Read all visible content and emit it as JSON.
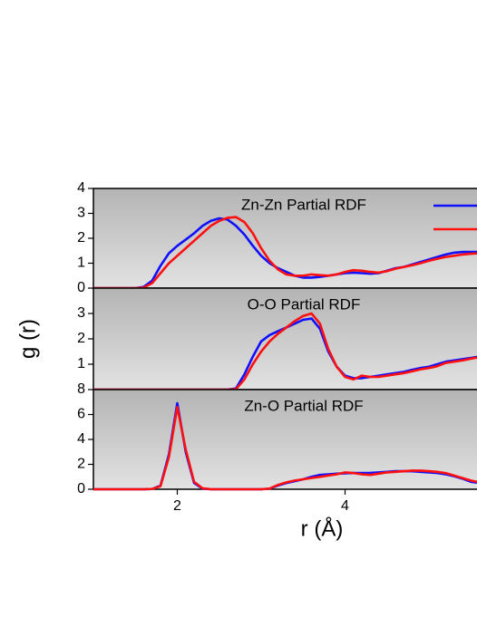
{
  "chart_data": [
    {
      "type": "line",
      "title": "Zn-Zn Partial RDF",
      "x": [
        1.0,
        1.5,
        1.6,
        1.7,
        1.8,
        1.9,
        2.0,
        2.1,
        2.2,
        2.3,
        2.4,
        2.5,
        2.6,
        2.7,
        2.8,
        2.9,
        3.0,
        3.1,
        3.2,
        3.3,
        3.4,
        3.5,
        3.6,
        3.7,
        3.8,
        3.9,
        4.0,
        4.1,
        4.2,
        4.3,
        4.4,
        4.5,
        4.6,
        4.7,
        4.8,
        4.9,
        5.0,
        5.1,
        5.2,
        5.3,
        5.4,
        5.5,
        5.6
      ],
      "series": [
        {
          "color": "#1010ff",
          "values": [
            0,
            0,
            0.05,
            0.3,
            0.9,
            1.4,
            1.7,
            1.95,
            2.2,
            2.5,
            2.7,
            2.8,
            2.75,
            2.5,
            2.15,
            1.7,
            1.3,
            1.0,
            0.8,
            0.65,
            0.5,
            0.42,
            0.42,
            0.45,
            0.5,
            0.55,
            0.6,
            0.62,
            0.6,
            0.58,
            0.6,
            0.7,
            0.8,
            0.85,
            0.95,
            1.05,
            1.15,
            1.25,
            1.35,
            1.42,
            1.45,
            1.45,
            1.45
          ]
        },
        {
          "color": "#ff1010",
          "values": [
            0,
            0,
            0.02,
            0.2,
            0.6,
            1.0,
            1.3,
            1.6,
            1.9,
            2.2,
            2.5,
            2.7,
            2.82,
            2.85,
            2.65,
            2.2,
            1.6,
            1.1,
            0.75,
            0.55,
            0.5,
            0.5,
            0.55,
            0.52,
            0.5,
            0.55,
            0.65,
            0.72,
            0.7,
            0.65,
            0.62,
            0.68,
            0.78,
            0.85,
            0.92,
            1.0,
            1.1,
            1.18,
            1.25,
            1.3,
            1.35,
            1.38,
            1.4
          ]
        }
      ],
      "xlim": [
        1,
        5.6
      ],
      "ylim": [
        0,
        4
      ],
      "yticks": [
        0,
        1,
        2,
        3,
        4
      ]
    },
    {
      "type": "line",
      "title": "O-O Partial RDF",
      "ylabel": "g (r)",
      "x": [
        1.0,
        1.5,
        1.6,
        1.7,
        1.8,
        1.9,
        2.0,
        2.1,
        2.2,
        2.3,
        2.4,
        2.5,
        2.6,
        2.7,
        2.8,
        2.9,
        3.0,
        3.1,
        3.2,
        3.3,
        3.4,
        3.5,
        3.6,
        3.7,
        3.8,
        3.9,
        4.0,
        4.1,
        4.2,
        4.3,
        4.4,
        4.5,
        4.6,
        4.7,
        4.8,
        4.9,
        5.0,
        5.1,
        5.2,
        5.3,
        5.4,
        5.5,
        5.6
      ],
      "series": [
        {
          "color": "#1010ff",
          "values": [
            0,
            0,
            0,
            0,
            0,
            0,
            0,
            0,
            0,
            0,
            0,
            0,
            0,
            0.05,
            0.6,
            1.3,
            1.9,
            2.15,
            2.3,
            2.45,
            2.6,
            2.75,
            2.8,
            2.4,
            1.5,
            0.9,
            0.55,
            0.45,
            0.45,
            0.5,
            0.55,
            0.6,
            0.65,
            0.7,
            0.78,
            0.85,
            0.9,
            1.0,
            1.1,
            1.15,
            1.2,
            1.25,
            1.3
          ]
        },
        {
          "color": "#ff1010",
          "values": [
            0,
            0,
            0,
            0,
            0,
            0,
            0,
            0,
            0,
            0,
            0,
            0,
            0,
            0.02,
            0.4,
            1.0,
            1.5,
            1.9,
            2.2,
            2.45,
            2.7,
            2.9,
            3.0,
            2.6,
            1.6,
            0.9,
            0.5,
            0.4,
            0.55,
            0.5,
            0.5,
            0.55,
            0.6,
            0.65,
            0.72,
            0.8,
            0.85,
            0.92,
            1.05,
            1.1,
            1.15,
            1.22,
            1.28
          ]
        }
      ],
      "xlim": [
        1,
        5.6
      ],
      "ylim": [
        0,
        4
      ],
      "yticks": [
        1,
        2,
        3
      ]
    },
    {
      "type": "line",
      "title": "Zn-O Partial RDF",
      "xlabel": "r (Å)",
      "x": [
        1.0,
        1.5,
        1.6,
        1.7,
        1.8,
        1.9,
        2.0,
        2.1,
        2.2,
        2.3,
        2.4,
        2.5,
        2.6,
        2.7,
        2.8,
        2.9,
        3.0,
        3.1,
        3.2,
        3.3,
        3.4,
        3.5,
        3.6,
        3.7,
        3.8,
        3.9,
        4.0,
        4.1,
        4.2,
        4.3,
        4.4,
        4.5,
        4.6,
        4.7,
        4.8,
        4.9,
        5.0,
        5.1,
        5.2,
        5.3,
        5.4,
        5.5,
        5.6
      ],
      "series": [
        {
          "color": "#1010ff",
          "values": [
            0,
            0,
            0,
            0.02,
            0.3,
            2.8,
            6.9,
            3.0,
            0.5,
            0.05,
            0,
            0,
            0,
            0,
            0,
            0,
            0,
            0.05,
            0.3,
            0.5,
            0.65,
            0.8,
            1.0,
            1.15,
            1.2,
            1.25,
            1.28,
            1.3,
            1.3,
            1.32,
            1.35,
            1.4,
            1.45,
            1.45,
            1.45,
            1.4,
            1.35,
            1.3,
            1.2,
            1.05,
            0.85,
            0.6,
            0.5
          ]
        },
        {
          "color": "#ff1010",
          "values": [
            0,
            0,
            0,
            0.02,
            0.25,
            2.6,
            6.6,
            3.2,
            0.6,
            0.08,
            0.01,
            0,
            0,
            0,
            0,
            0,
            0,
            0.05,
            0.35,
            0.55,
            0.7,
            0.8,
            0.9,
            1.0,
            1.1,
            1.2,
            1.35,
            1.3,
            1.2,
            1.15,
            1.25,
            1.35,
            1.4,
            1.45,
            1.5,
            1.5,
            1.45,
            1.4,
            1.3,
            1.1,
            0.9,
            0.7,
            0.55
          ]
        }
      ],
      "xlim": [
        1,
        5.6
      ],
      "ylim": [
        0,
        8
      ],
      "yticks": [
        0,
        2,
        4,
        6,
        8
      ],
      "xticks": [
        2,
        4
      ]
    }
  ]
}
